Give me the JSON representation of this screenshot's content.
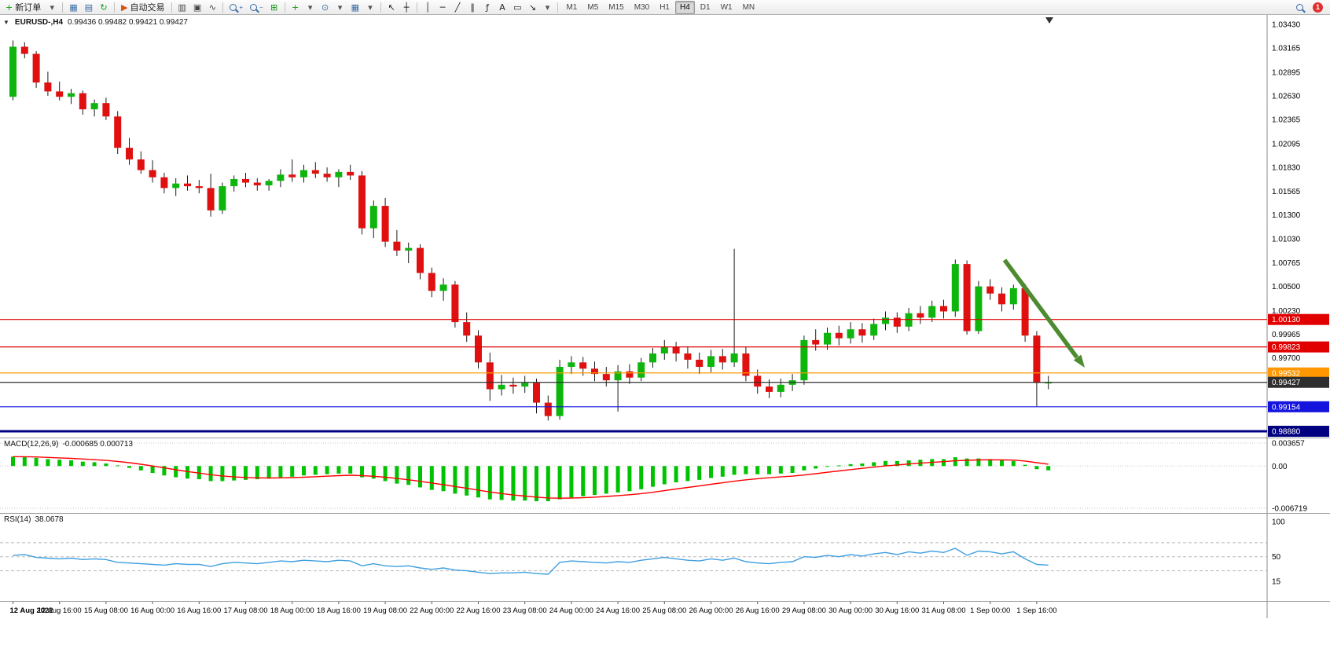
{
  "toolbar": {
    "items": [
      {
        "name": "new-order-button",
        "glyph": "+",
        "glyph_color": "#0a9a0a",
        "label": "新订单"
      },
      {
        "name": "new-order-caret",
        "glyph": "▾",
        "glyph_color": "#555"
      },
      {
        "name": "sep-1",
        "type": "sep"
      },
      {
        "name": "charts-window-icon",
        "glyph": "▦",
        "glyph_color": "#3a6ea5"
      },
      {
        "name": "data-window-icon",
        "glyph": "▤",
        "glyph_color": "#3a6ea5"
      },
      {
        "name": "refresh-icon",
        "glyph": "↻",
        "glyph_color": "#0a9a0a"
      },
      {
        "name": "sep-2",
        "type": "sep"
      },
      {
        "name": "auto-trading-button",
        "glyph": "▶",
        "glyph_color": "#d9530f",
        "label": "自动交易"
      },
      {
        "name": "sep-3",
        "type": "sep"
      },
      {
        "name": "bars-chart-icon",
        "glyph": "▥",
        "glyph_color": "#444444"
      },
      {
        "name": "candlestick-chart-icon",
        "glyph": "▣",
        "glyph_color": "#444444"
      },
      {
        "name": "line-chart-icon",
        "glyph": "∿",
        "glyph_color": "#444444"
      },
      {
        "name": "sep-4",
        "type": "sep"
      },
      {
        "name": "zoom-in-icon",
        "type": "mag",
        "sub": "+"
      },
      {
        "name": "zoom-out-icon",
        "type": "mag",
        "sub": "−"
      },
      {
        "name": "tile-windows-icon",
        "glyph": "⊞",
        "glyph_color": "#0a9a0a"
      },
      {
        "name": "sep-5",
        "type": "sep"
      },
      {
        "name": "indicators-icon",
        "glyph": "+",
        "glyph_color": "#0a9a0a"
      },
      {
        "name": "indicators-caret",
        "glyph": "▾",
        "glyph_color": "#555"
      },
      {
        "name": "periods-icon",
        "glyph": "⊙",
        "glyph_color": "#3a6ea5"
      },
      {
        "name": "periods-caret",
        "glyph": "▾",
        "glyph_color": "#555"
      },
      {
        "name": "templates-icon",
        "glyph": "▦",
        "glyph_color": "#3a6ea5"
      },
      {
        "name": "templates-caret",
        "glyph": "▾",
        "glyph_color": "#555"
      },
      {
        "name": "sep-6",
        "type": "sep"
      },
      {
        "name": "cursor-icon",
        "glyph": "↖",
        "glyph_color": "#222222"
      },
      {
        "name": "crosshair-icon",
        "glyph": "┼",
        "glyph_color": "#222222"
      },
      {
        "name": "sep-7",
        "type": "sep"
      },
      {
        "name": "vertical-line-icon",
        "glyph": "│",
        "glyph_color": "#222222"
      },
      {
        "name": "horizontal-line-icon",
        "glyph": "─",
        "glyph_color": "#222222"
      },
      {
        "name": "trendline-icon",
        "glyph": "╱",
        "glyph_color": "#222222"
      },
      {
        "name": "channel-icon",
        "glyph": "∥",
        "glyph_color": "#222222"
      },
      {
        "name": "fibonacci-icon",
        "glyph": "ƒ",
        "glyph_color": "#222222"
      },
      {
        "name": "text-icon",
        "glyph": "A",
        "glyph_color": "#222222"
      },
      {
        "name": "label-icon",
        "glyph": "▭",
        "glyph_color": "#222222"
      },
      {
        "name": "arrows-icon",
        "glyph": "↘",
        "glyph_color": "#222222"
      },
      {
        "name": "arrows-caret",
        "glyph": "▾",
        "glyph_color": "#555"
      },
      {
        "name": "sep-8",
        "type": "sep"
      }
    ],
    "timeframes": [
      "M1",
      "M5",
      "M15",
      "M30",
      "H1",
      "H4",
      "D1",
      "W1",
      "MN"
    ],
    "active_timeframe": "H4",
    "notification_count": "1"
  },
  "chart_header": {
    "symbol_period": "EURUSD-,H4",
    "ohlc_text": "0.99436 0.99482 0.99421 0.99427"
  },
  "chart_data": {
    "type": "candlestick",
    "symbol": "EURUSD-",
    "period": "H4",
    "current": {
      "open": 0.99436,
      "high": 0.99482,
      "low": 0.99421,
      "close": 0.99427
    },
    "y_axis": {
      "min": 0.9888,
      "max": 1.0343,
      "labels": [
        "1.03430",
        "1.03165",
        "1.02895",
        "1.02630",
        "1.02365",
        "1.02095",
        "1.01830",
        "1.01565",
        "1.01300",
        "1.01030",
        "1.00765",
        "1.00500",
        "1.00230",
        "0.99965",
        "0.99700"
      ]
    },
    "levels": [
      {
        "value": "1.00130",
        "price": 1.0013,
        "color": "#e00000",
        "thick": false
      },
      {
        "value": "0.99823",
        "price": 0.99823,
        "color": "#e00000",
        "thick": false
      },
      {
        "value": "0.99532",
        "price": 0.99532,
        "color": "#ff9800",
        "thick": false
      },
      {
        "value": "0.99427",
        "price": 0.99427,
        "color": "#2e2e2e",
        "thick": false,
        "role": "current-price"
      },
      {
        "value": "0.99154",
        "price": 0.99154,
        "color": "#1414dd",
        "thick": false
      },
      {
        "value": "0.98880",
        "price": 0.9888,
        "color": "#000080",
        "thick": true
      }
    ],
    "annotation_arrow": {
      "color": "#4d8b31",
      "direction": "down-right"
    },
    "candles": [
      [
        1.0262,
        1.0325,
        1.0258,
        1.0318
      ],
      [
        1.0318,
        1.0323,
        1.0305,
        1.031
      ],
      [
        1.031,
        1.0313,
        1.0272,
        1.0278
      ],
      [
        1.0278,
        1.029,
        1.0263,
        1.0268
      ],
      [
        1.0268,
        1.0279,
        1.0258,
        1.0262
      ],
      [
        1.0262,
        1.0271,
        1.0254,
        1.0266
      ],
      [
        1.0266,
        1.0269,
        1.0242,
        1.0248
      ],
      [
        1.0248,
        1.0259,
        1.024,
        1.0255
      ],
      [
        1.0255,
        1.0261,
        1.0236,
        1.024
      ],
      [
        1.024,
        1.0246,
        1.0198,
        1.0205
      ],
      [
        1.0205,
        1.0216,
        1.0186,
        1.0192
      ],
      [
        1.0192,
        1.0201,
        1.0176,
        1.018
      ],
      [
        1.018,
        1.0191,
        1.0166,
        1.0172
      ],
      [
        1.0172,
        1.0177,
        1.0154,
        1.016
      ],
      [
        1.016,
        1.0171,
        1.0151,
        1.0165
      ],
      [
        1.0165,
        1.0174,
        1.0157,
        1.0162
      ],
      [
        1.0162,
        1.0169,
        1.0154,
        1.016
      ],
      [
        1.016,
        1.0176,
        1.0128,
        1.0135
      ],
      [
        1.0135,
        1.0166,
        1.0131,
        1.0162
      ],
      [
        1.0162,
        1.0174,
        1.0156,
        1.017
      ],
      [
        1.017,
        1.0177,
        1.0161,
        1.0166
      ],
      [
        1.0166,
        1.0171,
        1.0157,
        1.0163
      ],
      [
        1.0163,
        1.017,
        1.0157,
        1.0168
      ],
      [
        1.0168,
        1.0181,
        1.0161,
        1.0175
      ],
      [
        1.0175,
        1.0192,
        1.0167,
        1.0172
      ],
      [
        1.0172,
        1.0186,
        1.0166,
        1.018
      ],
      [
        1.018,
        1.0189,
        1.0171,
        1.0176
      ],
      [
        1.0176,
        1.0183,
        1.0167,
        1.0172
      ],
      [
        1.0172,
        1.0181,
        1.0161,
        1.0178
      ],
      [
        1.0178,
        1.0186,
        1.0169,
        1.0174
      ],
      [
        1.0174,
        1.0179,
        1.0108,
        1.0115
      ],
      [
        1.0115,
        1.0146,
        1.0104,
        1.014
      ],
      [
        1.014,
        1.0149,
        1.0094,
        1.01
      ],
      [
        1.01,
        1.0113,
        1.0084,
        1.009
      ],
      [
        1.009,
        1.0099,
        1.0076,
        1.0093
      ],
      [
        1.0093,
        1.0097,
        1.0058,
        1.0065
      ],
      [
        1.0065,
        1.0071,
        1.0038,
        1.0045
      ],
      [
        1.0045,
        1.0059,
        1.0034,
        1.0052
      ],
      [
        1.0052,
        1.0056,
        1.0004,
        1.001
      ],
      [
        1.001,
        1.0021,
        0.9988,
        0.9995
      ],
      [
        0.9995,
        1.0001,
        0.9958,
        0.9965
      ],
      [
        0.9965,
        0.9976,
        0.9922,
        0.9935
      ],
      [
        0.9935,
        0.9951,
        0.9928,
        0.994
      ],
      [
        0.994,
        0.9948,
        0.993,
        0.9938
      ],
      [
        0.9938,
        0.995,
        0.9931,
        0.9942
      ],
      [
        0.9942,
        0.9947,
        0.9908,
        0.992
      ],
      [
        0.992,
        0.9928,
        0.99,
        0.9905
      ],
      [
        0.9905,
        0.9968,
        0.9901,
        0.996
      ],
      [
        0.996,
        0.9972,
        0.9952,
        0.9965
      ],
      [
        0.9965,
        0.9971,
        0.995,
        0.9958
      ],
      [
        0.9958,
        0.9966,
        0.9944,
        0.9952
      ],
      [
        0.9952,
        0.996,
        0.9938,
        0.9945
      ],
      [
        0.9945,
        0.9962,
        0.991,
        0.9955
      ],
      [
        0.9955,
        0.9963,
        0.9941,
        0.9948
      ],
      [
        0.9948,
        0.997,
        0.9944,
        0.9965
      ],
      [
        0.9965,
        0.9981,
        0.9959,
        0.9975
      ],
      [
        0.9975,
        0.999,
        0.9968,
        0.9982
      ],
      [
        0.9982,
        0.9988,
        0.9966,
        0.9975
      ],
      [
        0.9975,
        0.9983,
        0.9958,
        0.9968
      ],
      [
        0.9968,
        0.9976,
        0.9952,
        0.996
      ],
      [
        0.996,
        0.9979,
        0.9954,
        0.9972
      ],
      [
        0.9972,
        0.998,
        0.9957,
        0.9965
      ],
      [
        0.9965,
        1.0092,
        0.996,
        0.9975
      ],
      [
        0.9975,
        0.9982,
        0.9944,
        0.995
      ],
      [
        0.995,
        0.9957,
        0.993,
        0.9938
      ],
      [
        0.9938,
        0.9946,
        0.9925,
        0.9932
      ],
      [
        0.9932,
        0.9947,
        0.9926,
        0.994
      ],
      [
        0.994,
        0.9952,
        0.9933,
        0.9945
      ],
      [
        0.9945,
        0.9995,
        0.994,
        0.999
      ],
      [
        0.999,
        1.0002,
        0.9978,
        0.9985
      ],
      [
        0.9985,
        1.0004,
        0.9979,
        0.9998
      ],
      [
        0.9998,
        1.0006,
        0.9984,
        0.9992
      ],
      [
        0.9992,
        1.001,
        0.9986,
        1.0002
      ],
      [
        1.0002,
        1.0009,
        0.9987,
        0.9995
      ],
      [
        0.9995,
        1.0014,
        0.999,
        1.0008
      ],
      [
        1.0008,
        1.0022,
        1.0001,
        1.0015
      ],
      [
        1.0015,
        1.0021,
        0.9998,
        1.0005
      ],
      [
        1.0005,
        1.0026,
        1.0,
        1.002
      ],
      [
        1.002,
        1.0028,
        1.0008,
        1.0015
      ],
      [
        1.0015,
        1.0034,
        1.001,
        1.0028
      ],
      [
        1.0028,
        1.0035,
        1.0014,
        1.0022
      ],
      [
        1.0022,
        1.008,
        1.0016,
        1.0075
      ],
      [
        1.0075,
        1.0079,
        0.9996,
        1.0
      ],
      [
        1.0,
        1.0056,
        0.9997,
        1.005
      ],
      [
        1.005,
        1.0058,
        1.0035,
        1.0042
      ],
      [
        1.0042,
        1.0049,
        1.0022,
        1.003
      ],
      [
        1.003,
        1.0052,
        1.0024,
        1.0048
      ],
      [
        1.0048,
        1.0053,
        0.9988,
        0.9995
      ],
      [
        0.9995,
        1.0,
        0.9916,
        0.9942
      ],
      [
        0.9942,
        0.995,
        0.9935,
        0.99427
      ]
    ],
    "time_labels": [
      "12 Aug 2022",
      "12 Aug 16:00",
      "15 Aug 08:00",
      "16 Aug 00:00",
      "16 Aug 16:00",
      "17 Aug 08:00",
      "18 Aug 00:00",
      "18 Aug 16:00",
      "19 Aug 08:00",
      "22 Aug 00:00",
      "22 Aug 16:00",
      "23 Aug 08:00",
      "24 Aug 00:00",
      "24 Aug 16:00",
      "25 Aug 08:00",
      "26 Aug 00:00",
      "26 Aug 16:00",
      "29 Aug 08:00",
      "30 Aug 00:00",
      "30 Aug 16:00",
      "31 Aug 08:00",
      "1 Sep 00:00",
      "1 Sep 16:00"
    ],
    "candles_per_label": 4,
    "macd": {
      "label": "MACD(12,26,9)",
      "values_text": "-0.000685 0.000713",
      "axis_labels": [
        [
          "0.003657",
          0.003657
        ],
        [
          "0.00",
          0
        ],
        [
          "-0.006719",
          -0.006719
        ]
      ],
      "scale_max": 0.003657,
      "scale_min": -0.006719,
      "signal_period": 9,
      "histogram_color": "#00c300",
      "signal_color": "#ff0000",
      "histogram": [
        0.0015,
        0.0014,
        0.0013,
        0.0011,
        0.001,
        0.0009,
        0.0007,
        0.0006,
        0.0004,
        0.0001,
        -0.0003,
        -0.0007,
        -0.0011,
        -0.0015,
        -0.0018,
        -0.002,
        -0.0021,
        -0.0024,
        -0.0024,
        -0.0023,
        -0.0022,
        -0.0021,
        -0.002,
        -0.0018,
        -0.0017,
        -0.0015,
        -0.0014,
        -0.0013,
        -0.0012,
        -0.0012,
        -0.0018,
        -0.002,
        -0.0024,
        -0.0028,
        -0.003,
        -0.0034,
        -0.0038,
        -0.004,
        -0.0044,
        -0.0047,
        -0.005,
        -0.0053,
        -0.0054,
        -0.0055,
        -0.0055,
        -0.0056,
        -0.0056,
        -0.0053,
        -0.005,
        -0.0048,
        -0.0046,
        -0.0044,
        -0.0042,
        -0.004,
        -0.0037,
        -0.0033,
        -0.0029,
        -0.0026,
        -0.0024,
        -0.0022,
        -0.0019,
        -0.0017,
        -0.0014,
        -0.0013,
        -0.0013,
        -0.0013,
        -0.0012,
        -0.0011,
        -0.0007,
        -0.0004,
        -0.0001,
        0.0001,
        0.0003,
        0.0004,
        0.0006,
        0.0008,
        0.0008,
        0.0009,
        0.001,
        0.0011,
        0.0011,
        0.0014,
        0.0012,
        0.0012,
        0.0011,
        0.0009,
        0.0008,
        0.0002,
        -0.0005,
        -0.000685
      ]
    },
    "rsi": {
      "label": "RSI(14)",
      "value_text": "38.0678",
      "axis_labels": [
        [
          "100",
          100
        ],
        [
          "50",
          50
        ],
        [
          "15",
          15
        ]
      ],
      "levels_dashed": [
        70,
        50,
        30
      ],
      "color": "#3f9fe0",
      "values": [
        52,
        53,
        49,
        48,
        47,
        48,
        46,
        47,
        46,
        42,
        41,
        40,
        39,
        38,
        40,
        39,
        39,
        36,
        40,
        42,
        41,
        40,
        42,
        44,
        43,
        45,
        44,
        43,
        45,
        44,
        37,
        40,
        37,
        36,
        37,
        34,
        32,
        34,
        31,
        30,
        28,
        26,
        27,
        27,
        28,
        26,
        25,
        42,
        44,
        43,
        42,
        41,
        43,
        42,
        45,
        47,
        49,
        47,
        45,
        44,
        47,
        45,
        48,
        43,
        41,
        40,
        42,
        43,
        50,
        49,
        52,
        50,
        53,
        51,
        54,
        56,
        53,
        57,
        55,
        58,
        56,
        62,
        52,
        58,
        57,
        54,
        57,
        47,
        39,
        38.07
      ]
    }
  },
  "theme": {
    "bull": "#0db50d",
    "bear": "#e01010",
    "wick": "#1a1a1a",
    "grid": "#c6c6c6",
    "axis_line": "#8a8a8a",
    "tag_text": "#ffffff"
  }
}
